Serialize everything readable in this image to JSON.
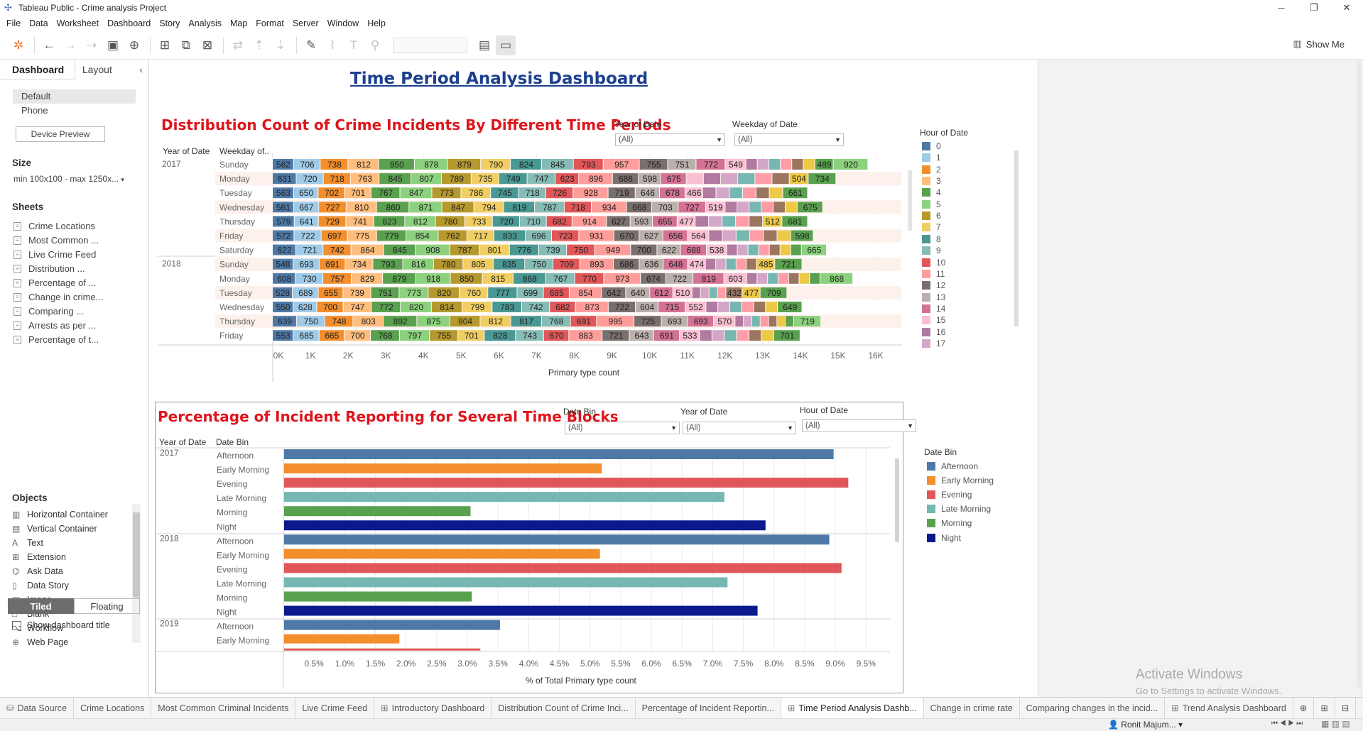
{
  "window": {
    "title": "Tableau Public - Crime analysis Project",
    "minimize": "─",
    "maximize": "❐",
    "close": "✕"
  },
  "menu": [
    "File",
    "Data",
    "Worksheet",
    "Dashboard",
    "Story",
    "Analysis",
    "Map",
    "Format",
    "Server",
    "Window",
    "Help"
  ],
  "toolbar": {
    "show_me": "Show Me"
  },
  "left": {
    "tab_dashboard": "Dashboard",
    "tab_layout": "Layout",
    "devices": [
      "Default",
      "Phone"
    ],
    "device_preview": "Device Preview",
    "size_label": "Size",
    "size_value": "min 100x100 - max 1250x...",
    "sheets_label": "Sheets",
    "sheets": [
      "Crime Locations",
      "Most Common ...",
      "Live Crime Feed",
      "Distribution ...",
      "Percentage of ...",
      "Change in crime...",
      "Comparing ...",
      "Arrests as per ...",
      "Percentage of t..."
    ],
    "objects_label": "Objects",
    "objects": [
      {
        "icon": "▥",
        "label": "Horizontal Container"
      },
      {
        "icon": "▤",
        "label": "Vertical Container"
      },
      {
        "icon": "A",
        "label": "Text"
      },
      {
        "icon": "⊞",
        "label": "Extension"
      },
      {
        "icon": "⌬",
        "label": "Ask Data"
      },
      {
        "icon": "▯",
        "label": "Data Story"
      },
      {
        "icon": "▣",
        "label": "Image"
      },
      {
        "icon": "□",
        "label": "Blank"
      },
      {
        "icon": "⌥",
        "label": "Workflow"
      },
      {
        "icon": "⊕",
        "label": "Web Page"
      }
    ],
    "tiled": "Tiled",
    "floating": "Floating",
    "show_title": "Show dashboard title"
  },
  "dashboard": {
    "title": "Time Period Analysis Dashboard",
    "section1": {
      "title": "Distribution Count of Crime Incidents By Different Time Periods",
      "filter_year_label": "Year of Date",
      "filter_year_value": "(All)",
      "filter_weekday_label": "Weekday of Date",
      "filter_weekday_value": "(All)",
      "col_year": "Year of Date",
      "col_weekday": "Weekday of..",
      "axis_title": "Primary type count",
      "ticks": [
        "0K",
        "1K",
        "2K",
        "3K",
        "4K",
        "5K",
        "6K",
        "7K",
        "8K",
        "9K",
        "10K",
        "11K",
        "12K",
        "13K",
        "14K",
        "15K",
        "16K"
      ],
      "legend_title": "Hour of Date",
      "legend": [
        {
          "label": "0",
          "color": "#4e79a7"
        },
        {
          "label": "1",
          "color": "#a0cbe8"
        },
        {
          "label": "2",
          "color": "#f28e2b"
        },
        {
          "label": "3",
          "color": "#ffbe7d"
        },
        {
          "label": "4",
          "color": "#59a14f"
        },
        {
          "label": "5",
          "color": "#8cd17d"
        },
        {
          "label": "6",
          "color": "#b6992d"
        },
        {
          "label": "7",
          "color": "#f1ce63"
        },
        {
          "label": "8",
          "color": "#499894"
        },
        {
          "label": "9",
          "color": "#86bcb6"
        },
        {
          "label": "10",
          "color": "#e15759"
        },
        {
          "label": "11",
          "color": "#ff9d9a"
        },
        {
          "label": "12",
          "color": "#79706e"
        },
        {
          "label": "13",
          "color": "#bab0ac"
        },
        {
          "label": "14",
          "color": "#d37295"
        },
        {
          "label": "15",
          "color": "#fabfd2"
        },
        {
          "label": "16",
          "color": "#b07aa1"
        },
        {
          "label": "17",
          "color": "#d4a6c8"
        }
      ],
      "rows": [
        {
          "year": "2017",
          "day": "Sunday",
          "labels": [
            "562",
            "706",
            "738",
            "812",
            "950",
            "878",
            "879",
            "790",
            "824",
            "845",
            "793",
            "957",
            "755",
            "751",
            "772",
            "549",
            "",
            "",
            "",
            "",
            "",
            "",
            "489",
            "920"
          ]
        },
        {
          "year": "",
          "day": "Monday",
          "labels": [
            "631",
            "720",
            "718",
            "763",
            "845",
            "807",
            "789",
            "735",
            "749",
            "747",
            "623",
            "896",
            "686",
            "598",
            "675",
            "",
            "",
            "",
            "",
            "",
            "",
            "504",
            "734"
          ]
        },
        {
          "year": "",
          "day": "Tuesday",
          "labels": [
            "563",
            "650",
            "702",
            "701",
            "767",
            "847",
            "773",
            "786",
            "745",
            "718",
            "726",
            "928",
            "719",
            "646",
            "678",
            "466",
            "",
            "",
            "",
            "",
            "",
            "",
            "661"
          ]
        },
        {
          "year": "",
          "day": "Wednesday",
          "labels": [
            "561",
            "667",
            "727",
            "810",
            "860",
            "871",
            "847",
            "794",
            "819",
            "787",
            "718",
            "934",
            "668",
            "703",
            "727",
            "519",
            "",
            "",
            "",
            "",
            "",
            "",
            "675"
          ]
        },
        {
          "year": "",
          "day": "Thursday",
          "labels": [
            "579",
            "641",
            "729",
            "741",
            "823",
            "812",
            "780",
            "733",
            "720",
            "710",
            "682",
            "914",
            "627",
            "593",
            "655",
            "477",
            "",
            "",
            "",
            "",
            "",
            "512",
            "681"
          ]
        },
        {
          "year": "",
          "day": "Friday",
          "labels": [
            "572",
            "722",
            "697",
            "775",
            "779",
            "854",
            "762",
            "717",
            "833",
            "696",
            "723",
            "931",
            "670",
            "627",
            "656",
            "564",
            "",
            "",
            "",
            "",
            "",
            "",
            "598"
          ]
        },
        {
          "year": "",
          "day": "Saturday",
          "labels": [
            "622",
            "721",
            "742",
            "864",
            "845",
            "908",
            "787",
            "801",
            "776",
            "739",
            "750",
            "949",
            "700",
            "622",
            "688",
            "538",
            "",
            "",
            "",
            "",
            "",
            "",
            "",
            "665"
          ]
        },
        {
          "year": "2018",
          "day": "Sunday",
          "labels": [
            "548",
            "693",
            "691",
            "734",
            "793",
            "816",
            "780",
            "805",
            "835",
            "750",
            "709",
            "893",
            "686",
            "636",
            "648",
            "474",
            "",
            "",
            "",
            "",
            "",
            "485",
            "721"
          ]
        },
        {
          "year": "",
          "day": "Monday",
          "labels": [
            "608",
            "730",
            "757",
            "829",
            "879",
            "918",
            "850",
            "815",
            "868",
            "767",
            "770",
            "973",
            "674",
            "722",
            "819",
            "603",
            "",
            "",
            "",
            "",
            "",
            "",
            "",
            "868"
          ]
        },
        {
          "year": "",
          "day": "Tuesday",
          "labels": [
            "528",
            "689",
            "655",
            "739",
            "751",
            "773",
            "820",
            "760",
            "777",
            "699",
            "685",
            "854",
            "642",
            "640",
            "612",
            "510",
            "",
            "",
            "",
            "",
            "432",
            "477",
            "709"
          ]
        },
        {
          "year": "",
          "day": "Wednesday",
          "labels": [
            "550",
            "628",
            "700",
            "747",
            "772",
            "820",
            "814",
            "799",
            "783",
            "742",
            "682",
            "873",
            "722",
            "604",
            "715",
            "552",
            "",
            "",
            "",
            "",
            "",
            "",
            "649"
          ]
        },
        {
          "year": "",
          "day": "Thursday",
          "labels": [
            "639",
            "750",
            "748",
            "803",
            "892",
            "875",
            "804",
            "812",
            "817",
            "768",
            "691",
            "995",
            "725",
            "693",
            "693",
            "570",
            "",
            "",
            "",
            "",
            "",
            "",
            "",
            "719"
          ]
        },
        {
          "year": "",
          "day": "Friday",
          "labels": [
            "553",
            "685",
            "665",
            "700",
            "768",
            "797",
            "755",
            "701",
            "828",
            "743",
            "670",
            "883",
            "721",
            "643",
            "691",
            "533",
            "",
            "",
            "",
            "",
            "",
            "",
            "701"
          ]
        }
      ]
    },
    "section2": {
      "title": "Percentage of Incident Reporting for Several Time Blocks",
      "filter_datebin_label": "Date Bin",
      "filter_datebin_value": "(All)",
      "filter_year_label": "Year of Date",
      "filter_year_value": "(All)",
      "filter_hour_label": "Hour of Date",
      "filter_hour_value": "(All)",
      "col_year": "Year of Date",
      "col_bin": "Date Bin",
      "axis_title": "% of Total Primary type count",
      "ticks": [
        "0.5%",
        "1.0%",
        "1.5%",
        "2.0%",
        "2.5%",
        "3.0%",
        "3.5%",
        "4.0%",
        "4.5%",
        "5.0%",
        "5.5%",
        "6.0%",
        "6.5%",
        "7.0%",
        "7.5%",
        "8.0%",
        "8.5%",
        "9.0%",
        "9.5%"
      ],
      "legend_title": "Date Bin",
      "legend": [
        {
          "label": "Afternoon",
          "color": "#4e79a7"
        },
        {
          "label": "Early Morning",
          "color": "#f28e2b"
        },
        {
          "label": "Evening",
          "color": "#e15759"
        },
        {
          "label": "Late Morning",
          "color": "#76b7b2"
        },
        {
          "label": "Morning",
          "color": "#59a14f"
        },
        {
          "label": "Night",
          "color": "#0a1a8c"
        }
      ]
    }
  },
  "chart_data": [
    {
      "type": "bar",
      "title": "Distribution Count of Crime Incidents By Different Time Periods",
      "xlabel": "Primary type count",
      "ylabel": "",
      "xlim": [
        0,
        16000
      ],
      "orientation": "horizontal",
      "stacked": true,
      "categories": [
        "2017 Sunday",
        "2017 Monday",
        "2017 Tuesday",
        "2017 Wednesday",
        "2017 Thursday",
        "2017 Friday",
        "2017 Saturday",
        "2018 Sunday",
        "2018 Monday",
        "2018 Tuesday",
        "2018 Wednesday",
        "2018 Thursday",
        "2018 Friday"
      ],
      "totals": [
        15800,
        14950,
        14200,
        14600,
        14200,
        14350,
        14700,
        14050,
        15400,
        13650,
        14050,
        14550,
        14000
      ]
    },
    {
      "type": "bar",
      "title": "Percentage of Incident Reporting for Several Time Blocks",
      "xlabel": "% of Total Primary type count",
      "ylabel": "",
      "xlim": [
        0,
        9.7
      ],
      "orientation": "horizontal",
      "categories": [
        "2017 Afternoon",
        "2017 Early Morning",
        "2017 Evening",
        "2017 Late Morning",
        "2017 Morning",
        "2017 Night",
        "2018 Afternoon",
        "2018 Early Morning",
        "2018 Evening",
        "2018 Late Morning",
        "2018 Morning",
        "2018 Night",
        "2019 Afternoon",
        "2019 Early Morning"
      ],
      "series": [
        {
          "values": [
            8.96,
            5.18,
            9.2,
            7.18,
            3.04,
            7.85,
            8.89,
            5.15,
            9.09,
            7.23,
            3.06,
            7.72,
            3.52,
            1.88
          ]
        }
      ],
      "bar_colors": [
        "#4e79a7",
        "#f28e2b",
        "#e15759",
        "#76b7b2",
        "#59a14f",
        "#0a1a8c",
        "#4e79a7",
        "#f28e2b",
        "#e15759",
        "#76b7b2",
        "#59a14f",
        "#0a1a8c",
        "#4e79a7",
        "#f28e2b"
      ],
      "group_labels": [
        {
          "year": "2017",
          "bin": "Afternoon"
        },
        {
          "year": "",
          "bin": "Early Morning"
        },
        {
          "year": "",
          "bin": "Evening"
        },
        {
          "year": "",
          "bin": "Late Morning"
        },
        {
          "year": "",
          "bin": "Morning"
        },
        {
          "year": "",
          "bin": "Night"
        },
        {
          "year": "2018",
          "bin": "Afternoon"
        },
        {
          "year": "",
          "bin": "Early Morning"
        },
        {
          "year": "",
          "bin": "Evening"
        },
        {
          "year": "",
          "bin": "Late Morning"
        },
        {
          "year": "",
          "bin": "Morning"
        },
        {
          "year": "",
          "bin": "Night"
        },
        {
          "year": "2019",
          "bin": "Afternoon"
        },
        {
          "year": "",
          "bin": "Early Morning"
        }
      ]
    }
  ],
  "bottom_tabs": [
    {
      "label": "Data Source",
      "icon": "⛁"
    },
    {
      "label": "Crime Locations",
      "icon": ""
    },
    {
      "label": "Most Common Criminal Incidents",
      "icon": ""
    },
    {
      "label": "Live Crime Feed",
      "icon": ""
    },
    {
      "label": "Introductory Dashboard",
      "icon": "⊞"
    },
    {
      "label": "Distribution Count of Crime Inci...",
      "icon": ""
    },
    {
      "label": "Percentage of Incident Reportin...",
      "icon": ""
    },
    {
      "label": "Time Period Analysis Dashb...",
      "icon": "⊞",
      "active": true
    },
    {
      "label": "Change in crime rate",
      "icon": ""
    },
    {
      "label": "Comparing changes in the incid...",
      "icon": ""
    },
    {
      "label": "Trend Analysis Dashboard",
      "icon": "⊞"
    }
  ],
  "status": {
    "user": "Ronit Majum..."
  },
  "watermark": {
    "line1": "Activate Windows",
    "line2": "Go to Settings to activate Windows."
  }
}
